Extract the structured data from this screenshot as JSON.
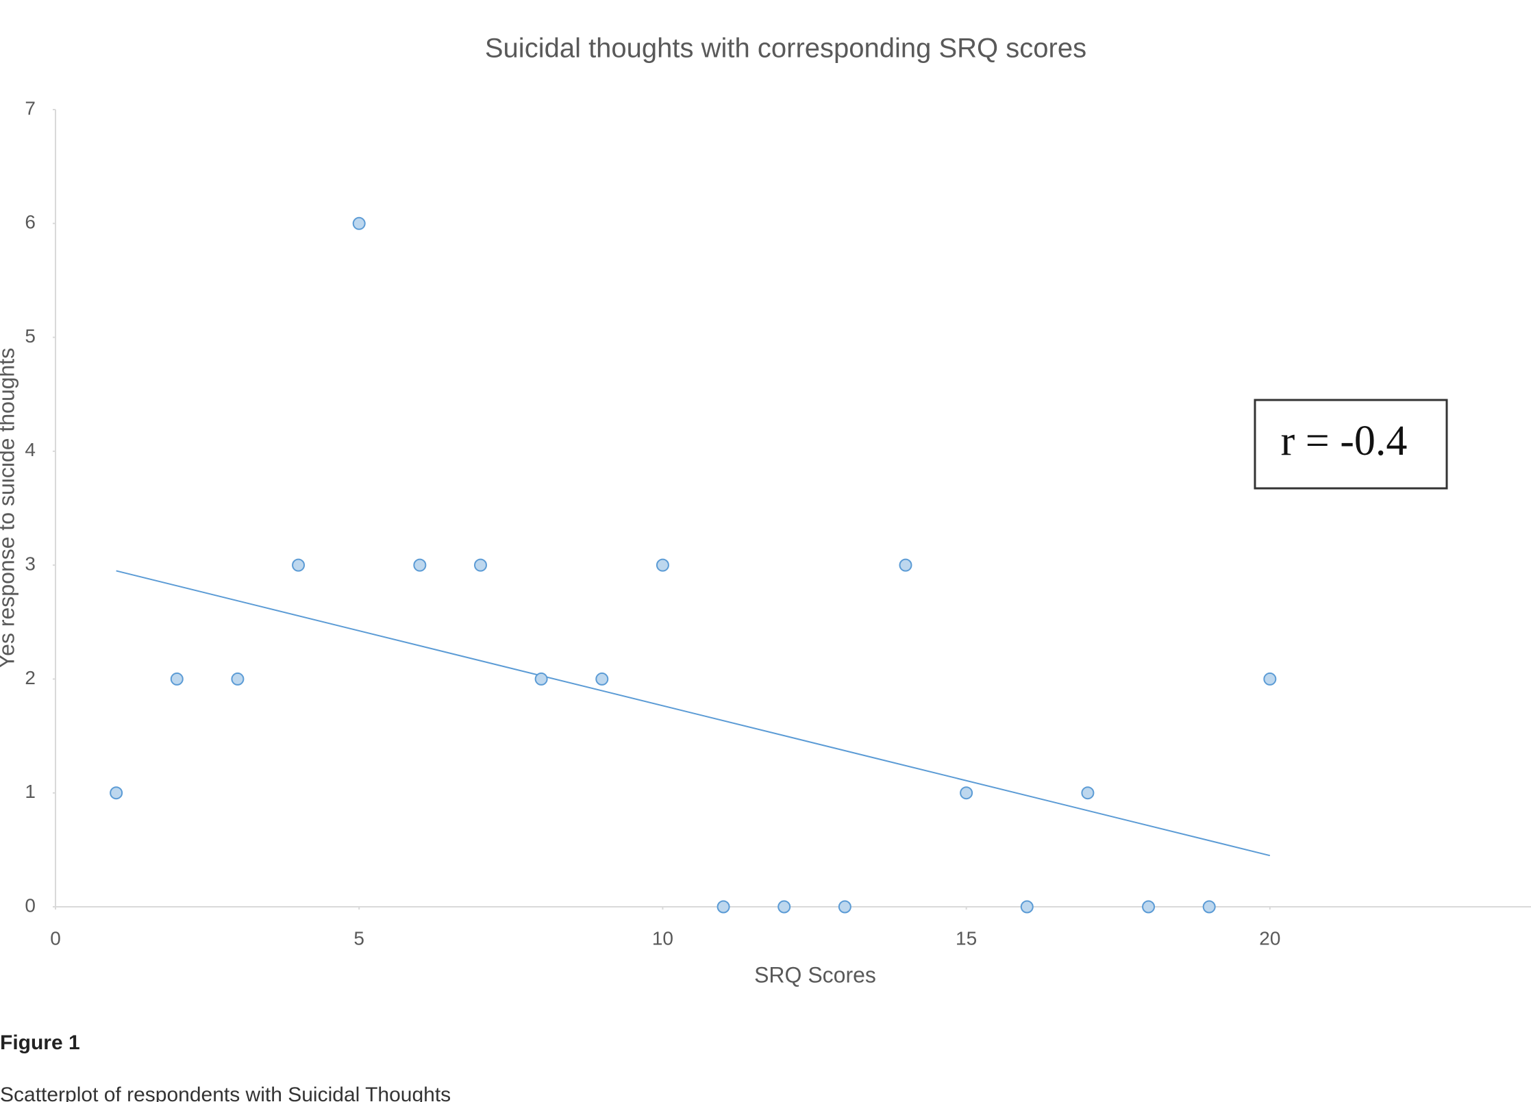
{
  "chart_data": {
    "type": "scatter",
    "title": "Suicidal thoughts with corresponding SRQ scores",
    "xlabel": "SRQ Scores",
    "ylabel": "Yes response to suicide thoughts",
    "x": [
      1,
      2,
      3,
      4,
      5,
      6,
      7,
      8,
      9,
      10,
      11,
      12,
      13,
      14,
      15,
      16,
      17,
      18,
      19,
      20
    ],
    "values": [
      1,
      2,
      2,
      3,
      6,
      3,
      3,
      2,
      2,
      3,
      0,
      0,
      0,
      3,
      1,
      0,
      1,
      0,
      0,
      2
    ],
    "color": "#5b9bd5",
    "trendline": {
      "x": [
        1,
        20
      ],
      "values": [
        2.95,
        0.45
      ]
    },
    "annotation": "r = -0.4",
    "xlim": [
      0,
      24.3
    ],
    "ylim": [
      0,
      7
    ],
    "xticks": [
      0,
      5,
      10,
      15,
      20
    ],
    "yticks": [
      0,
      1,
      2,
      3,
      4,
      5,
      6,
      7
    ]
  },
  "figure": {
    "label": "Figure 1",
    "caption": "Scatterplot of respondents with Suicidal Thoughts"
  }
}
